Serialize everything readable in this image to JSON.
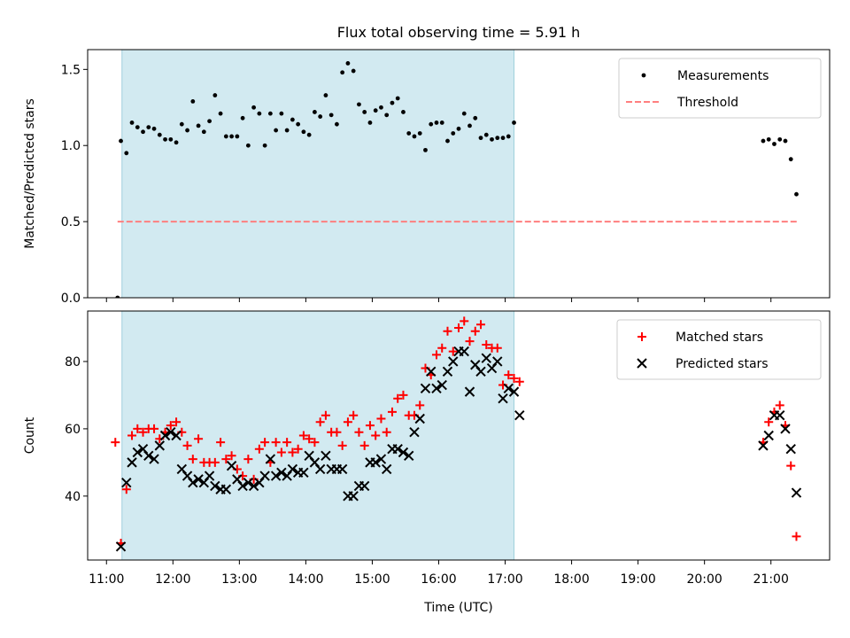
{
  "title": "Flux total observing time = 5.91 h",
  "colors": {
    "observing_shade": "#add8e6",
    "measurement": "#000000",
    "threshold": "#ff7f7f",
    "matched": "#ff0000",
    "predicted": "#000000"
  },
  "shaded_interval": {
    "start": "11:14",
    "end": "17:08"
  },
  "x_axis": {
    "label": "Time (UTC)",
    "ticks": [
      "11:00",
      "12:00",
      "13:00",
      "14:00",
      "15:00",
      "16:00",
      "17:00",
      "18:00",
      "19:00",
      "20:00",
      "21:00"
    ]
  },
  "chart_data": [
    {
      "type": "scatter",
      "panel": "top",
      "ylabel": "Matched/Predicted stars",
      "xlim": [
        "10:43",
        "21:53"
      ],
      "ylim": [
        0,
        1.63
      ],
      "yticks": [
        "0.0",
        "0.5",
        "1.0",
        "1.5"
      ],
      "legend": {
        "placement": "top-right",
        "entries": [
          "Measurements",
          "Threshold"
        ]
      },
      "threshold": {
        "name": "Threshold",
        "value": 0.5,
        "x_range": [
          "11:10",
          "21:25"
        ]
      },
      "series": [
        {
          "name": "Measurements",
          "points": [
            [
              "11:10",
              0.0
            ],
            [
              "11:13",
              1.03
            ],
            [
              "11:18",
              0.95
            ],
            [
              "11:23",
              1.15
            ],
            [
              "11:28",
              1.12
            ],
            [
              "11:33",
              1.09
            ],
            [
              "11:38",
              1.12
            ],
            [
              "11:43",
              1.11
            ],
            [
              "11:48",
              1.07
            ],
            [
              "11:53",
              1.04
            ],
            [
              "11:58",
              1.04
            ],
            [
              "12:03",
              1.02
            ],
            [
              "12:08",
              1.14
            ],
            [
              "12:13",
              1.1
            ],
            [
              "12:18",
              1.29
            ],
            [
              "12:23",
              1.13
            ],
            [
              "12:28",
              1.09
            ],
            [
              "12:33",
              1.16
            ],
            [
              "12:38",
              1.33
            ],
            [
              "12:43",
              1.21
            ],
            [
              "12:48",
              1.06
            ],
            [
              "12:53",
              1.06
            ],
            [
              "12:58",
              1.06
            ],
            [
              "13:03",
              1.18
            ],
            [
              "13:08",
              1.0
            ],
            [
              "13:13",
              1.25
            ],
            [
              "13:18",
              1.21
            ],
            [
              "13:23",
              1.0
            ],
            [
              "13:28",
              1.21
            ],
            [
              "13:33",
              1.1
            ],
            [
              "13:38",
              1.21
            ],
            [
              "13:43",
              1.1
            ],
            [
              "13:48",
              1.17
            ],
            [
              "13:53",
              1.14
            ],
            [
              "13:58",
              1.09
            ],
            [
              "14:03",
              1.07
            ],
            [
              "14:08",
              1.22
            ],
            [
              "14:13",
              1.19
            ],
            [
              "14:18",
              1.33
            ],
            [
              "14:23",
              1.2
            ],
            [
              "14:28",
              1.14
            ],
            [
              "14:33",
              1.48
            ],
            [
              "14:38",
              1.54
            ],
            [
              "14:43",
              1.49
            ],
            [
              "14:48",
              1.27
            ],
            [
              "14:53",
              1.22
            ],
            [
              "14:58",
              1.15
            ],
            [
              "15:03",
              1.23
            ],
            [
              "15:08",
              1.25
            ],
            [
              "15:13",
              1.2
            ],
            [
              "15:18",
              1.28
            ],
            [
              "15:23",
              1.31
            ],
            [
              "15:28",
              1.22
            ],
            [
              "15:33",
              1.08
            ],
            [
              "15:38",
              1.06
            ],
            [
              "15:43",
              1.08
            ],
            [
              "15:48",
              0.97
            ],
            [
              "15:53",
              1.14
            ],
            [
              "15:58",
              1.15
            ],
            [
              "16:03",
              1.15
            ],
            [
              "16:08",
              1.03
            ],
            [
              "16:13",
              1.08
            ],
            [
              "16:18",
              1.11
            ],
            [
              "16:23",
              1.21
            ],
            [
              "16:28",
              1.13
            ],
            [
              "16:33",
              1.18
            ],
            [
              "16:38",
              1.05
            ],
            [
              "16:43",
              1.07
            ],
            [
              "16:48",
              1.04
            ],
            [
              "16:53",
              1.05
            ],
            [
              "16:58",
              1.05
            ],
            [
              "17:03",
              1.06
            ],
            [
              "17:08",
              1.15
            ],
            [
              "20:53",
              1.03
            ],
            [
              "20:58",
              1.04
            ],
            [
              "21:03",
              1.01
            ],
            [
              "21:08",
              1.04
            ],
            [
              "21:13",
              1.03
            ],
            [
              "21:18",
              0.91
            ],
            [
              "21:23",
              0.68
            ]
          ]
        }
      ]
    },
    {
      "type": "scatter",
      "panel": "bottom",
      "ylabel": "Count",
      "xlim": [
        "10:43",
        "21:53"
      ],
      "ylim": [
        21,
        95
      ],
      "yticks": [
        "40",
        "60",
        "80"
      ],
      "legend": {
        "placement": "top-right",
        "entries": [
          "Matched stars",
          "Predicted stars"
        ]
      },
      "series": [
        {
          "name": "Matched stars",
          "marker": "plus",
          "points": [
            [
              "11:08",
              56
            ],
            [
              "11:13",
              26
            ],
            [
              "11:18",
              42
            ],
            [
              "11:23",
              58
            ],
            [
              "11:28",
              60
            ],
            [
              "11:33",
              59
            ],
            [
              "11:38",
              60
            ],
            [
              "11:43",
              60
            ],
            [
              "11:48",
              57
            ],
            [
              "11:53",
              59
            ],
            [
              "11:58",
              61
            ],
            [
              "12:03",
              62
            ],
            [
              "12:08",
              59
            ],
            [
              "12:13",
              55
            ],
            [
              "12:18",
              51
            ],
            [
              "12:23",
              57
            ],
            [
              "12:28",
              50
            ],
            [
              "12:33",
              50
            ],
            [
              "12:38",
              50
            ],
            [
              "12:43",
              56
            ],
            [
              "12:48",
              51
            ],
            [
              "12:53",
              52
            ],
            [
              "12:58",
              48
            ],
            [
              "13:03",
              46
            ],
            [
              "13:08",
              51
            ],
            [
              "13:13",
              45
            ],
            [
              "13:18",
              54
            ],
            [
              "13:23",
              56
            ],
            [
              "13:28",
              50
            ],
            [
              "13:33",
              56
            ],
            [
              "13:38",
              53
            ],
            [
              "13:43",
              56
            ],
            [
              "13:48",
              53
            ],
            [
              "13:53",
              54
            ],
            [
              "13:58",
              58
            ],
            [
              "14:03",
              57
            ],
            [
              "14:08",
              56
            ],
            [
              "14:13",
              62
            ],
            [
              "14:18",
              64
            ],
            [
              "14:23",
              59
            ],
            [
              "14:28",
              59
            ],
            [
              "14:33",
              55
            ],
            [
              "14:38",
              62
            ],
            [
              "14:43",
              64
            ],
            [
              "14:48",
              59
            ],
            [
              "14:53",
              55
            ],
            [
              "14:58",
              61
            ],
            [
              "15:03",
              58
            ],
            [
              "15:08",
              63
            ],
            [
              "15:13",
              59
            ],
            [
              "15:18",
              65
            ],
            [
              "15:23",
              69
            ],
            [
              "15:28",
              70
            ],
            [
              "15:33",
              64
            ],
            [
              "15:38",
              64
            ],
            [
              "15:43",
              67
            ],
            [
              "15:48",
              78
            ],
            [
              "15:53",
              76
            ],
            [
              "15:58",
              82
            ],
            [
              "16:03",
              84
            ],
            [
              "16:08",
              89
            ],
            [
              "16:13",
              83
            ],
            [
              "16:18",
              90
            ],
            [
              "16:23",
              92
            ],
            [
              "16:28",
              86
            ],
            [
              "16:33",
              89
            ],
            [
              "16:38",
              91
            ],
            [
              "16:43",
              85
            ],
            [
              "16:48",
              84
            ],
            [
              "16:53",
              84
            ],
            [
              "16:58",
              73
            ],
            [
              "17:03",
              76
            ],
            [
              "17:08",
              75
            ],
            [
              "17:13",
              74
            ],
            [
              "20:53",
              56
            ],
            [
              "20:58",
              62
            ],
            [
              "21:03",
              65
            ],
            [
              "21:08",
              67
            ],
            [
              "21:13",
              61
            ],
            [
              "21:18",
              49
            ],
            [
              "21:23",
              28
            ]
          ]
        },
        {
          "name": "Predicted stars",
          "marker": "x",
          "points": [
            [
              "11:13",
              25
            ],
            [
              "11:18",
              44
            ],
            [
              "11:23",
              50
            ],
            [
              "11:28",
              53
            ],
            [
              "11:33",
              54
            ],
            [
              "11:38",
              52
            ],
            [
              "11:43",
              51
            ],
            [
              "11:48",
              55
            ],
            [
              "11:53",
              58
            ],
            [
              "11:58",
              59
            ],
            [
              "12:03",
              58
            ],
            [
              "12:08",
              48
            ],
            [
              "12:13",
              46
            ],
            [
              "12:18",
              44
            ],
            [
              "12:23",
              45
            ],
            [
              "12:28",
              44
            ],
            [
              "12:33",
              46
            ],
            [
              "12:38",
              43
            ],
            [
              "12:43",
              42
            ],
            [
              "12:48",
              42
            ],
            [
              "12:53",
              49
            ],
            [
              "12:58",
              45
            ],
            [
              "13:03",
              43
            ],
            [
              "13:08",
              44
            ],
            [
              "13:13",
              43
            ],
            [
              "13:18",
              44
            ],
            [
              "13:23",
              46
            ],
            [
              "13:28",
              51
            ],
            [
              "13:33",
              46
            ],
            [
              "13:38",
              47
            ],
            [
              "13:43",
              46
            ],
            [
              "13:48",
              48
            ],
            [
              "13:53",
              47
            ],
            [
              "13:58",
              47
            ],
            [
              "14:03",
              52
            ],
            [
              "14:08",
              50
            ],
            [
              "14:13",
              48
            ],
            [
              "14:18",
              52
            ],
            [
              "14:23",
              48
            ],
            [
              "14:28",
              48
            ],
            [
              "14:33",
              48
            ],
            [
              "14:38",
              40
            ],
            [
              "14:43",
              40
            ],
            [
              "14:48",
              43
            ],
            [
              "14:53",
              43
            ],
            [
              "14:58",
              50
            ],
            [
              "15:03",
              50
            ],
            [
              "15:08",
              51
            ],
            [
              "15:13",
              48
            ],
            [
              "15:18",
              54
            ],
            [
              "15:23",
              54
            ],
            [
              "15:28",
              53
            ],
            [
              "15:33",
              52
            ],
            [
              "15:38",
              59
            ],
            [
              "15:43",
              63
            ],
            [
              "15:48",
              72
            ],
            [
              "15:53",
              77
            ],
            [
              "15:58",
              72
            ],
            [
              "16:03",
              73
            ],
            [
              "16:08",
              77
            ],
            [
              "16:13",
              80
            ],
            [
              "16:18",
              83
            ],
            [
              "16:23",
              83
            ],
            [
              "16:28",
              71
            ],
            [
              "16:33",
              79
            ],
            [
              "16:38",
              77
            ],
            [
              "16:43",
              81
            ],
            [
              "16:48",
              78
            ],
            [
              "16:53",
              80
            ],
            [
              "16:58",
              69
            ],
            [
              "17:03",
              72
            ],
            [
              "17:08",
              71
            ],
            [
              "17:13",
              64
            ],
            [
              "20:53",
              55
            ],
            [
              "20:58",
              58
            ],
            [
              "21:03",
              64
            ],
            [
              "21:08",
              64
            ],
            [
              "21:13",
              60
            ],
            [
              "21:18",
              54
            ],
            [
              "21:23",
              41
            ]
          ]
        }
      ]
    }
  ]
}
